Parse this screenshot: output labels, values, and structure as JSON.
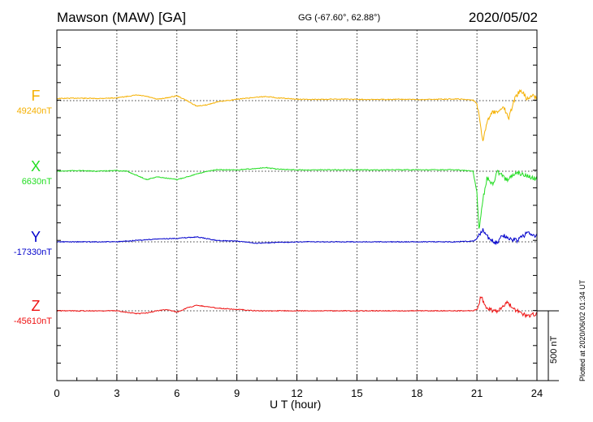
{
  "header": {
    "station": "Mawson (MAW)  [GA]",
    "coords": "GG (-67.60°,  62.88°)",
    "date": "2020/05/02"
  },
  "footer": {
    "plotted": "Plotted at 2020/06/02 01:34 UT"
  },
  "chart_data": {
    "type": "line",
    "xlabel": "U T (hour)",
    "xlim": [
      0,
      24
    ],
    "xticks": [
      0,
      3,
      6,
      9,
      12,
      15,
      18,
      21,
      24
    ],
    "grid": true,
    "scale_bar": {
      "value": 500,
      "label": "500 nT"
    },
    "series": [
      {
        "name": "F",
        "baseline": "49240nT",
        "color": "#f5b000",
        "points": [
          [
            0,
            -15
          ],
          [
            1,
            -18
          ],
          [
            2,
            -15
          ],
          [
            3,
            -20
          ],
          [
            4,
            -40
          ],
          [
            4.5,
            -30
          ],
          [
            5,
            -10
          ],
          [
            5.5,
            -20
          ],
          [
            6,
            -35
          ],
          [
            6.5,
            0
          ],
          [
            7,
            40
          ],
          [
            7.5,
            30
          ],
          [
            8,
            10
          ],
          [
            9,
            -10
          ],
          [
            10,
            -25
          ],
          [
            10.5,
            -30
          ],
          [
            11,
            -20
          ],
          [
            12,
            -10
          ],
          [
            13,
            -8
          ],
          [
            14,
            -12
          ],
          [
            15,
            -10
          ],
          [
            16,
            -8
          ],
          [
            17,
            -10
          ],
          [
            18,
            -8
          ],
          [
            19,
            -10
          ],
          [
            20,
            -12
          ],
          [
            20.8,
            -5
          ],
          [
            21,
            20
          ],
          [
            21.1,
            100
          ],
          [
            21.3,
            300
          ],
          [
            21.5,
            150
          ],
          [
            21.8,
            80
          ],
          [
            22,
            90
          ],
          [
            22.3,
            40
          ],
          [
            22.6,
            120
          ],
          [
            22.9,
            -20
          ],
          [
            23.2,
            -80
          ],
          [
            23.5,
            -10
          ],
          [
            23.8,
            -40
          ],
          [
            24,
            -20
          ]
        ]
      },
      {
        "name": "X",
        "baseline": "6630nT",
        "color": "#22dd22",
        "points": [
          [
            0,
            0
          ],
          [
            1,
            -5
          ],
          [
            2,
            0
          ],
          [
            3,
            -5
          ],
          [
            3.5,
            0
          ],
          [
            4,
            30
          ],
          [
            4.5,
            60
          ],
          [
            5,
            40
          ],
          [
            6,
            60
          ],
          [
            6.5,
            40
          ],
          [
            7,
            20
          ],
          [
            7.5,
            0
          ],
          [
            8,
            -10
          ],
          [
            9,
            -10
          ],
          [
            10,
            -20
          ],
          [
            10.5,
            -25
          ],
          [
            11,
            -15
          ],
          [
            12,
            -10
          ],
          [
            14,
            -10
          ],
          [
            16,
            -10
          ],
          [
            18,
            -10
          ],
          [
            20,
            -10
          ],
          [
            20.8,
            0
          ],
          [
            21,
            150
          ],
          [
            21.1,
            420
          ],
          [
            21.3,
            200
          ],
          [
            21.5,
            50
          ],
          [
            21.8,
            100
          ],
          [
            22,
            0
          ],
          [
            22.5,
            60
          ],
          [
            23,
            10
          ],
          [
            23.5,
            30
          ],
          [
            24,
            60
          ]
        ]
      },
      {
        "name": "Y",
        "baseline": "-17330nT",
        "color": "#0000cc",
        "points": [
          [
            0,
            0
          ],
          [
            1,
            0
          ],
          [
            2,
            0
          ],
          [
            3,
            0
          ],
          [
            3.5,
            -5
          ],
          [
            4,
            -10
          ],
          [
            5,
            -20
          ],
          [
            6,
            -25
          ],
          [
            6.5,
            -30
          ],
          [
            7,
            -35
          ],
          [
            8,
            -10
          ],
          [
            9,
            -5
          ],
          [
            10,
            10
          ],
          [
            11,
            5
          ],
          [
            12,
            0
          ],
          [
            14,
            0
          ],
          [
            16,
            0
          ],
          [
            18,
            0
          ],
          [
            20,
            0
          ],
          [
            20.8,
            -5
          ],
          [
            21,
            -20
          ],
          [
            21.3,
            -90
          ],
          [
            21.6,
            -20
          ],
          [
            22,
            10
          ],
          [
            22.3,
            -50
          ],
          [
            22.6,
            -20
          ],
          [
            23,
            -10
          ],
          [
            23.5,
            -60
          ],
          [
            24,
            -40
          ]
        ]
      },
      {
        "name": "Z",
        "baseline": "-45610nT",
        "color": "#ee1111",
        "points": [
          [
            0,
            0
          ],
          [
            2,
            0
          ],
          [
            3,
            0
          ],
          [
            4,
            20
          ],
          [
            4.5,
            15
          ],
          [
            5,
            0
          ],
          [
            5.5,
            -10
          ],
          [
            6,
            10
          ],
          [
            6.5,
            -20
          ],
          [
            7,
            -40
          ],
          [
            8,
            -20
          ],
          [
            9,
            -10
          ],
          [
            10,
            0
          ],
          [
            12,
            0
          ],
          [
            14,
            0
          ],
          [
            16,
            0
          ],
          [
            18,
            0
          ],
          [
            20,
            0
          ],
          [
            20.8,
            0
          ],
          [
            21,
            -10
          ],
          [
            21.2,
            -100
          ],
          [
            21.5,
            -20
          ],
          [
            22,
            10
          ],
          [
            22.5,
            -60
          ],
          [
            23,
            0
          ],
          [
            23.5,
            40
          ],
          [
            24,
            20
          ]
        ]
      }
    ]
  }
}
